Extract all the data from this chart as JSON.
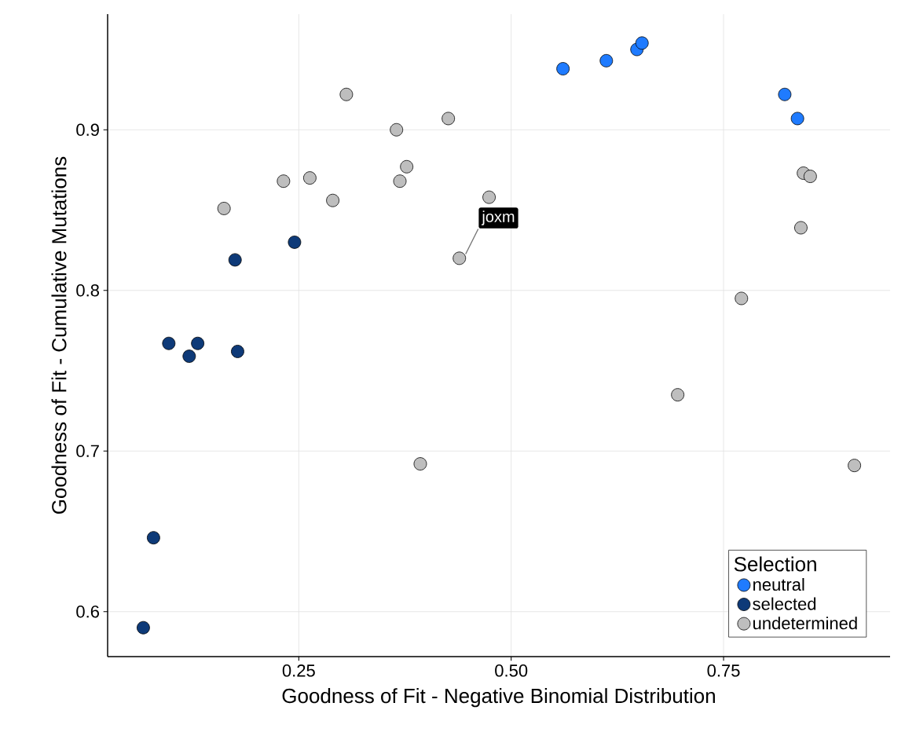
{
  "chart_data": {
    "type": "scatter",
    "xlabel": "Goodness of Fit - Negative Binomial Distribution",
    "ylabel": "Goodness of Fit - Cumulative Mutations",
    "legend_title": "Selection",
    "legend": "bottom right",
    "grid": true,
    "marker": "circle",
    "xlim": [
      0.025,
      0.946
    ],
    "ylim": [
      0.572,
      0.972
    ],
    "xticks": [
      {
        "value": 0.25,
        "label": "0.25"
      },
      {
        "value": 0.5,
        "label": "0.50"
      },
      {
        "value": 0.75,
        "label": "0.75"
      }
    ],
    "yticks": [
      0.6,
      0.7,
      0.8,
      0.9
    ],
    "annotations": [
      {
        "text": "joxm",
        "x": 0.439,
        "y": 0.82
      }
    ],
    "series": [
      {
        "name": "neutral",
        "color": "#1f7bff",
        "x": [
          0.561,
          0.612,
          0.648,
          0.654,
          0.822,
          0.837
        ],
        "values": [
          0.938,
          0.943,
          0.95,
          0.954,
          0.922,
          0.907
        ]
      },
      {
        "name": "selected",
        "color": "#0e3a78",
        "x": [
          0.067,
          0.079,
          0.097,
          0.121,
          0.131,
          0.175,
          0.178,
          0.245
        ],
        "values": [
          0.59,
          0.646,
          0.767,
          0.759,
          0.767,
          0.819,
          0.762,
          0.83
        ]
      },
      {
        "name": "undetermined",
        "color": "#bebebe",
        "x": [
          0.162,
          0.232,
          0.263,
          0.29,
          0.306,
          0.365,
          0.369,
          0.377,
          0.426,
          0.439,
          0.393,
          0.474,
          0.696,
          0.771,
          0.841,
          0.844,
          0.852,
          0.904
        ],
        "values": [
          0.851,
          0.868,
          0.87,
          0.856,
          0.922,
          0.9,
          0.868,
          0.877,
          0.907,
          0.82,
          0.692,
          0.858,
          0.735,
          0.795,
          0.839,
          0.873,
          0.871,
          0.691
        ]
      }
    ]
  }
}
